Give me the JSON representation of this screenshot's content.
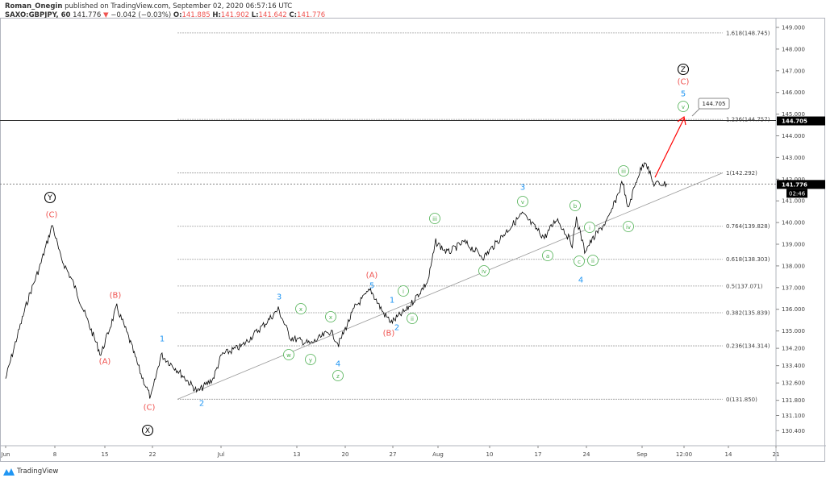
{
  "header": {
    "author": "Roman_Onegin",
    "published": "published on TradingView.com, September 02, 2020 06:57:16 UTC",
    "symbol": "SAXO:GBPJPY, 60",
    "last": "141.776",
    "change": "−0.042 (−0.03%)",
    "o_label": "O:",
    "o": "141.885",
    "h_label": "H:",
    "h": "141.902",
    "l_label": "L:",
    "l": "141.642",
    "c_label": "C:",
    "c": "141.776"
  },
  "logo": "TradingView",
  "chart_data": {
    "type": "line",
    "title": "",
    "xlabel": "",
    "ylabel": "",
    "ylim": [
      130.0,
      149.5
    ],
    "y_ticks": [
      "149.000",
      "148.000",
      "147.000",
      "146.000",
      "145.000",
      "144.000",
      "143.000",
      "142.000",
      "141.000",
      "140.000",
      "139.000",
      "138.000",
      "137.000",
      "136.000",
      "135.000",
      "134.200",
      "133.400",
      "132.600",
      "131.800",
      "131.100",
      "130.400"
    ],
    "x_ticks": [
      "Jun",
      "8",
      "15",
      "22",
      "Jul",
      "13",
      "20",
      "27",
      "Aug",
      "10",
      "17",
      "24",
      "Sep",
      "12:00",
      "14",
      "21"
    ],
    "series": [
      {
        "points": [
          [
            "2020-06-01 00",
            132.8
          ],
          [
            "2020-06-02 02",
            134.6
          ],
          [
            "2020-06-03 07",
            136.5
          ],
          [
            "2020-06-04 12",
            138.0
          ],
          [
            "2020-06-05 18",
            139.9
          ],
          [
            "2020-06-08 14",
            138.4
          ],
          [
            "2020-06-09 19",
            137.3
          ],
          [
            "2020-06-11 01",
            135.8
          ],
          [
            "2020-06-12 16",
            133.9
          ],
          [
            "2020-06-16 07",
            136.1
          ],
          [
            "2020-06-17 12",
            134.7
          ],
          [
            "2020-06-18 18",
            133.0
          ],
          [
            "2020-06-19 18",
            131.9
          ],
          [
            "2020-06-22 19",
            133.9
          ],
          [
            "2020-06-24 11",
            133.2
          ],
          [
            "2020-06-26 12",
            132.2
          ],
          [
            "2020-06-30 02",
            132.8
          ],
          [
            "2020-06-30 23",
            133.9
          ],
          [
            "2020-07-03 00",
            134.3
          ],
          [
            "2020-07-07 12",
            135.4
          ],
          [
            "2020-07-08 17",
            136.0
          ],
          [
            "2020-07-09 22",
            134.7
          ],
          [
            "2020-07-14 00",
            134.4
          ],
          [
            "2020-07-16 00",
            135.0
          ],
          [
            "2020-07-16 20",
            134.4
          ],
          [
            "2020-07-20 12",
            136.1
          ],
          [
            "2020-07-22 02",
            136.9
          ],
          [
            "2020-07-23 10",
            135.8
          ],
          [
            "2020-07-24 05",
            135.4
          ],
          [
            "2020-07-27 19",
            136.0
          ],
          [
            "2020-07-29 22",
            137.3
          ],
          [
            "2020-07-30 17",
            139.1
          ],
          [
            "2020-07-31 22",
            138.6
          ],
          [
            "2020-08-04 14",
            139.1
          ],
          [
            "2020-08-06 14",
            138.4
          ],
          [
            "2020-08-10 17",
            139.5
          ],
          [
            "2020-08-12 12",
            140.4
          ],
          [
            "2020-08-14 18",
            139.3
          ],
          [
            "2020-08-18 00",
            140.2
          ],
          [
            "2020-08-19 14",
            139.0
          ],
          [
            "2020-08-20 00",
            140.2
          ],
          [
            "2020-08-20 20",
            138.7
          ],
          [
            "2020-08-24 02",
            139.5
          ],
          [
            "2020-08-25 07",
            140.2
          ],
          [
            "2020-08-26 17",
            141.9
          ],
          [
            "2020-08-27 05",
            140.6
          ],
          [
            "2020-08-28 05",
            142.1
          ],
          [
            "2020-08-31 00",
            142.9
          ],
          [
            "2020-08-31 19",
            141.8
          ],
          [
            "2020-09-02 06",
            141.776
          ]
        ]
      }
    ],
    "fib_levels": [
      {
        "label": "0(131.850)",
        "price": 131.85
      },
      {
        "label": "0.236(134.314)",
        "price": 134.314
      },
      {
        "label": "0.382(135.839)",
        "price": 135.839
      },
      {
        "label": "0.5(137.071)",
        "price": 137.071
      },
      {
        "label": "0.618(138.303)",
        "price": 138.303
      },
      {
        "label": "0.764(139.828)",
        "price": 139.828
      },
      {
        "label": "1(142.292)",
        "price": 142.292
      },
      {
        "label": "1.236(144.757)",
        "price": 144.757
      },
      {
        "label": "1.618(148.745)",
        "price": 148.745
      }
    ],
    "horizontal_line": {
      "price": 144.705,
      "label": "144.705"
    },
    "callout": "144.705",
    "last_price_label": "141.776",
    "countdown": "02:46",
    "colors": {
      "price": "#000000",
      "fib": "#9e9e9e",
      "arrow": "#ff0000",
      "blue": "#2196f3",
      "red": "#ef5350",
      "green": "#4caf50",
      "black": "#000000"
    },
    "wave_labels": [
      {
        "text": "Y",
        "color": "black",
        "circled": true
      },
      {
        "text": "(C)",
        "color": "red"
      },
      {
        "text": "(B)",
        "color": "red"
      },
      {
        "text": "(A)",
        "color": "red"
      },
      {
        "text": "1",
        "color": "blue"
      },
      {
        "text": "(C)",
        "color": "red"
      },
      {
        "text": "X",
        "color": "black",
        "circled": true
      },
      {
        "text": "2",
        "color": "blue"
      },
      {
        "text": "3",
        "color": "blue"
      },
      {
        "text": "w",
        "color": "green",
        "circled": true
      },
      {
        "text": "x",
        "color": "green",
        "circled": true
      },
      {
        "text": "y",
        "color": "green",
        "circled": true
      },
      {
        "text": "x",
        "color": "green",
        "circled": true
      },
      {
        "text": "z",
        "color": "green",
        "circled": true
      },
      {
        "text": "4",
        "color": "blue"
      },
      {
        "text": "(A)",
        "color": "red"
      },
      {
        "text": "5",
        "color": "blue"
      },
      {
        "text": "1",
        "color": "blue"
      },
      {
        "text": "(B)",
        "color": "red"
      },
      {
        "text": "2",
        "color": "blue"
      },
      {
        "text": "i",
        "color": "green",
        "circled": true
      },
      {
        "text": "ii",
        "color": "green",
        "circled": true
      },
      {
        "text": "iii",
        "color": "green",
        "circled": true
      },
      {
        "text": "iv",
        "color": "green",
        "circled": true
      },
      {
        "text": "3",
        "color": "blue"
      },
      {
        "text": "v",
        "color": "green",
        "circled": true
      },
      {
        "text": "a",
        "color": "green",
        "circled": true
      },
      {
        "text": "b",
        "color": "green",
        "circled": true
      },
      {
        "text": "i",
        "color": "green",
        "circled": true
      },
      {
        "text": "c",
        "color": "green",
        "circled": true
      },
      {
        "text": "ii",
        "color": "green",
        "circled": true
      },
      {
        "text": "4",
        "color": "blue"
      },
      {
        "text": "iii",
        "color": "green",
        "circled": true
      },
      {
        "text": "iv",
        "color": "green",
        "circled": true
      },
      {
        "text": "Z",
        "color": "black",
        "circled": true
      },
      {
        "text": "(C)",
        "color": "red"
      },
      {
        "text": "5",
        "color": "blue"
      },
      {
        "text": "v",
        "color": "green",
        "circled": true
      }
    ]
  }
}
